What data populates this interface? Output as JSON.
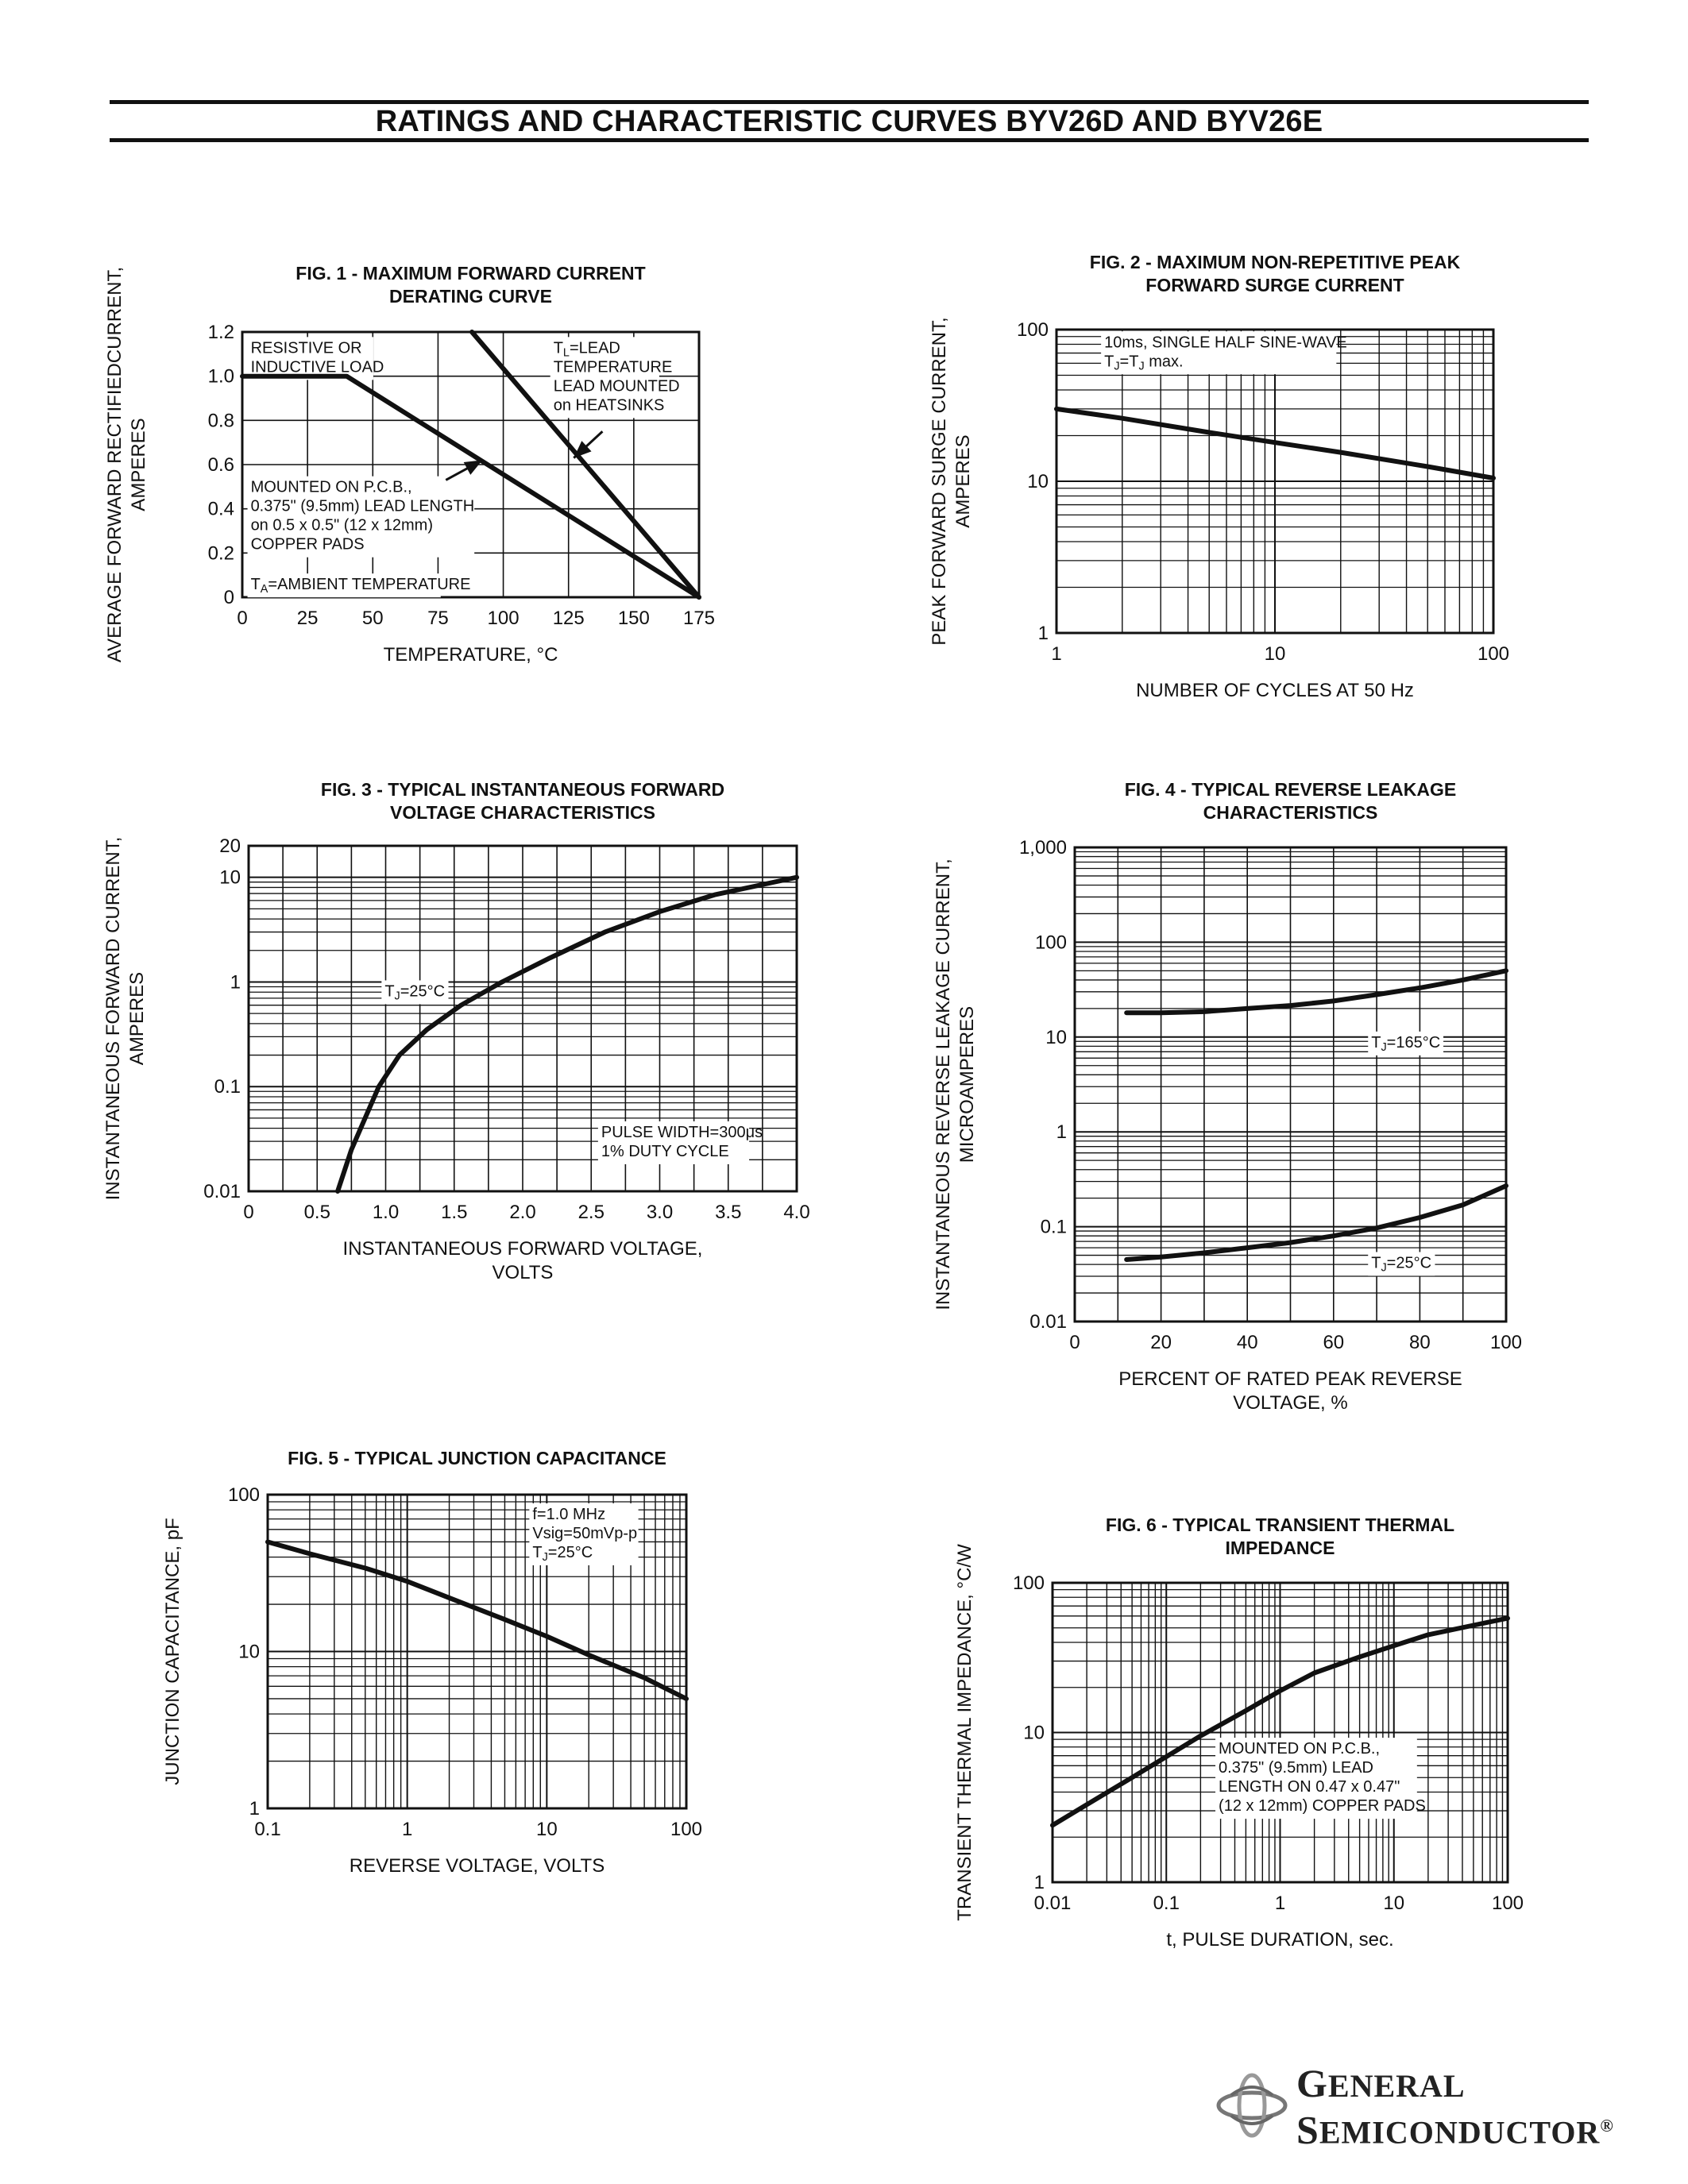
{
  "title": "RATINGS AND CHARACTERISTIC CURVES BYV26D AND BYV26E",
  "brand": {
    "line1_initial": "G",
    "line1_rest": "ENERAL",
    "line2_initial": "S",
    "line2_rest": "EMICONDUCTOR",
    "registered": "®",
    "logo_icon": "general-semiconductor-logo-icon"
  },
  "chart_data": [
    {
      "id": "fig1",
      "type": "line",
      "title": [
        "FIG. 1 - MAXIMUM FORWARD CURRENT",
        "DERATING CURVE"
      ],
      "ylabel": [
        "AVERAGE FORWARD RECTIFIEDCURRENT,",
        "AMPERES"
      ],
      "xlabel": [
        "TEMPERATURE, °C"
      ],
      "xscale": "linear",
      "yscale": "linear",
      "xlim": [
        0,
        175
      ],
      "ylim": [
        0,
        1.2
      ],
      "xticks": [
        0,
        25,
        50,
        75,
        100,
        125,
        150,
        175
      ],
      "xticklabels": [
        "0",
        "25",
        "50",
        "75",
        "100",
        "125",
        "150",
        "175"
      ],
      "yticks": [
        0,
        0.2,
        0.4,
        0.6,
        0.8,
        1.0,
        1.2
      ],
      "yticklabels": [
        "0",
        "0.2",
        "0.4",
        "0.6",
        "0.8",
        "1.0",
        "1.2"
      ],
      "grid": true,
      "series": [
        {
          "x": [
            0,
            40,
            175
          ],
          "y": [
            1.0,
            1.0,
            0
          ]
        },
        {
          "x": [
            88,
            175
          ],
          "y": [
            1.2,
            0
          ]
        }
      ],
      "annotations": [
        {
          "lines": [
            "RESISTIVE OR",
            "INDUCTIVE LOAD"
          ],
          "x": 2,
          "y": 1.17
        },
        {
          "lines": [
            "T_L=LEAD",
            "TEMPERATURE",
            "LEAD MOUNTED",
            "on HEATSINKS"
          ],
          "x": 118,
          "y": 1.17
        },
        {
          "lines": [
            "MOUNTED ON P.C.B.,",
            "0.375\" (9.5mm) LEAD LENGTH",
            "on 0.5 x 0.5\" (12 x 12mm)",
            "COPPER PADS"
          ],
          "x": 2,
          "y": 0.54
        },
        {
          "lines": [
            "T_A=AMBIENT TEMPERATURE"
          ],
          "x": 2,
          "y": 0.1
        }
      ],
      "arrows": [
        {
          "from": [
            78,
            0.53
          ],
          "to": [
            92,
            0.62
          ]
        },
        {
          "from": [
            138,
            0.75
          ],
          "to": [
            127,
            0.63
          ]
        }
      ]
    },
    {
      "id": "fig2",
      "type": "line",
      "title": [
        "FIG. 2 - MAXIMUM NON-REPETITIVE PEAK",
        "FORWARD SURGE CURRENT"
      ],
      "ylabel": [
        "PEAK FORWARD SURGE CURRENT,",
        "AMPERES"
      ],
      "xlabel": [
        "NUMBER OF CYCLES AT 50 Hz"
      ],
      "xscale": "log",
      "yscale": "log",
      "xlim": [
        1,
        100
      ],
      "ylim": [
        1,
        100
      ],
      "xticks": [
        1,
        10,
        100
      ],
      "xticklabels": [
        "1",
        "10",
        "100"
      ],
      "yticks": [
        1,
        10,
        100
      ],
      "yticklabels": [
        "1",
        "10",
        "100"
      ],
      "grid": true,
      "series": [
        {
          "x": [
            1,
            2,
            5,
            10,
            20,
            50,
            100
          ],
          "y": [
            30,
            26,
            21,
            18,
            15.5,
            12.5,
            10.5
          ]
        }
      ],
      "annotations": [
        {
          "lines": [
            "10ms, SINGLE HALF SINE-WAVE",
            "T_J=T_J max."
          ],
          "x": 1.6,
          "y": 95
        }
      ]
    },
    {
      "id": "fig3",
      "type": "line",
      "title": [
        "FIG. 3 - TYPICAL INSTANTANEOUS FORWARD",
        "VOLTAGE CHARACTERISTICS"
      ],
      "ylabel": [
        "INSTANTANEOUS FORWARD CURRENT,",
        "AMPERES"
      ],
      "xlabel": [
        "INSTANTANEOUS FORWARD VOLTAGE,",
        "VOLTS"
      ],
      "xscale": "linear",
      "yscale": "log",
      "xlim": [
        0,
        4.0
      ],
      "ylim": [
        0.01,
        20
      ],
      "xticks": [
        0,
        0.5,
        1.0,
        1.5,
        2.0,
        2.5,
        3.0,
        3.5,
        4.0
      ],
      "xticklabels": [
        "0",
        "0.5",
        "1.0",
        "1.5",
        "2.0",
        "2.5",
        "3.0",
        "3.5",
        "4.0"
      ],
      "yticks": [
        0.01,
        0.1,
        1,
        10,
        20
      ],
      "yticklabels": [
        "0.01",
        "0.1",
        "1",
        "10",
        "20"
      ],
      "grid": true,
      "series": [
        {
          "x": [
            0.65,
            0.75,
            0.85,
            0.95,
            1.1,
            1.3,
            1.55,
            1.85,
            2.2,
            2.6,
            3.0,
            3.4,
            3.8,
            4.0
          ],
          "y": [
            0.01,
            0.025,
            0.05,
            0.1,
            0.2,
            0.35,
            0.6,
            1.0,
            1.7,
            3.0,
            4.7,
            6.8,
            8.8,
            10
          ]
        }
      ],
      "annotations": [
        {
          "lines": [
            "T_J=25°C"
          ],
          "x": 0.97,
          "y": 1.0
        },
        {
          "lines": [
            "PULSE WIDTH=300μs",
            "1% DUTY CYCLE"
          ],
          "x": 2.55,
          "y": 0.045
        }
      ]
    },
    {
      "id": "fig4",
      "type": "line",
      "title": [
        "FIG. 4 - TYPICAL REVERSE LEAKAGE",
        "CHARACTERISTICS"
      ],
      "ylabel": [
        "INSTANTANEOUS REVERSE LEAKAGE CURRENT,",
        "MICROAMPERES"
      ],
      "xlabel": [
        "PERCENT OF RATED PEAK REVERSE",
        "VOLTAGE, %"
      ],
      "xscale": "linear",
      "yscale": "log",
      "xlim": [
        0,
        100
      ],
      "ylim": [
        0.01,
        1000
      ],
      "xticks": [
        0,
        20,
        40,
        60,
        80,
        100
      ],
      "xticklabels": [
        "0",
        "20",
        "40",
        "60",
        "80",
        "100"
      ],
      "yticks": [
        0.01,
        0.1,
        1,
        10,
        100,
        1000
      ],
      "yticklabels": [
        "0.01",
        "0.1",
        "1",
        "10",
        "100",
        "1,000"
      ],
      "grid": true,
      "series": [
        {
          "x": [
            12,
            20,
            30,
            40,
            50,
            60,
            70,
            80,
            90,
            100
          ],
          "y": [
            18,
            18,
            18.5,
            20,
            21.5,
            24,
            28,
            33,
            40,
            50
          ]
        },
        {
          "x": [
            12,
            20,
            30,
            40,
            50,
            60,
            70,
            80,
            90,
            100
          ],
          "y": [
            0.045,
            0.048,
            0.053,
            0.06,
            0.068,
            0.08,
            0.097,
            0.125,
            0.17,
            0.27
          ]
        }
      ],
      "annotations": [
        {
          "lines": [
            "T_J=165°C"
          ],
          "x": 68,
          "y": 11
        },
        {
          "lines": [
            "T_J=25°C"
          ],
          "x": 68,
          "y": 0.052
        }
      ]
    },
    {
      "id": "fig5",
      "type": "line",
      "title": [
        "FIG. 5 - TYPICAL JUNCTION CAPACITANCE"
      ],
      "ylabel": [
        "JUNCTION CAPACITANCE, pF"
      ],
      "xlabel": [
        "REVERSE VOLTAGE, VOLTS"
      ],
      "xscale": "log",
      "yscale": "log",
      "xlim": [
        0.1,
        100
      ],
      "ylim": [
        1,
        100
      ],
      "xticks": [
        0.1,
        1,
        10,
        100
      ],
      "xticklabels": [
        "0.1",
        "1",
        "10",
        "100"
      ],
      "yticks": [
        1,
        10,
        100
      ],
      "yticklabels": [
        "1",
        "10",
        "100"
      ],
      "grid": true,
      "series": [
        {
          "x": [
            0.1,
            0.2,
            0.5,
            1,
            2,
            5,
            10,
            20,
            50,
            100
          ],
          "y": [
            50,
            42,
            34,
            28,
            22,
            16,
            12.5,
            9.5,
            6.8,
            5
          ]
        }
      ],
      "annotations": [
        {
          "lines": [
            "f=1.0 MHz",
            "Vsig=50mVp-p",
            "T_J=25°C"
          ],
          "x": 7.5,
          "y": 86
        }
      ]
    },
    {
      "id": "fig6",
      "type": "line",
      "title": [
        "FIG. 6 - TYPICAL TRANSIENT THERMAL",
        "IMPEDANCE"
      ],
      "ylabel": [
        "TRANSIENT THERMAL IMPEDANCE, °C/W"
      ],
      "xlabel": [
        "t, PULSE DURATION, sec."
      ],
      "xscale": "log",
      "yscale": "log",
      "xlim": [
        0.01,
        100
      ],
      "ylim": [
        1,
        100
      ],
      "xticks": [
        0.01,
        0.1,
        1,
        10,
        100
      ],
      "xticklabels": [
        "0.01",
        "0.1",
        "1",
        "10",
        "100"
      ],
      "yticks": [
        1,
        10,
        100
      ],
      "yticklabels": [
        "1",
        "10",
        "100"
      ],
      "grid": true,
      "series": [
        {
          "x": [
            0.01,
            0.02,
            0.05,
            0.1,
            0.2,
            0.5,
            1,
            2,
            5,
            10,
            20,
            50,
            100
          ],
          "y": [
            2.4,
            3.3,
            5.0,
            6.9,
            9.5,
            14,
            19,
            25,
            32,
            38,
            45,
            52,
            58
          ]
        }
      ],
      "annotations": [
        {
          "lines": [
            "MOUNTED ON P.C.B.,",
            "0.375\" (9.5mm) LEAD",
            "LENGTH ON 0.47 x 0.47\"",
            "(12 x 12mm) COPPER PADS"
          ],
          "x": 0.27,
          "y": 9
        }
      ]
    }
  ]
}
